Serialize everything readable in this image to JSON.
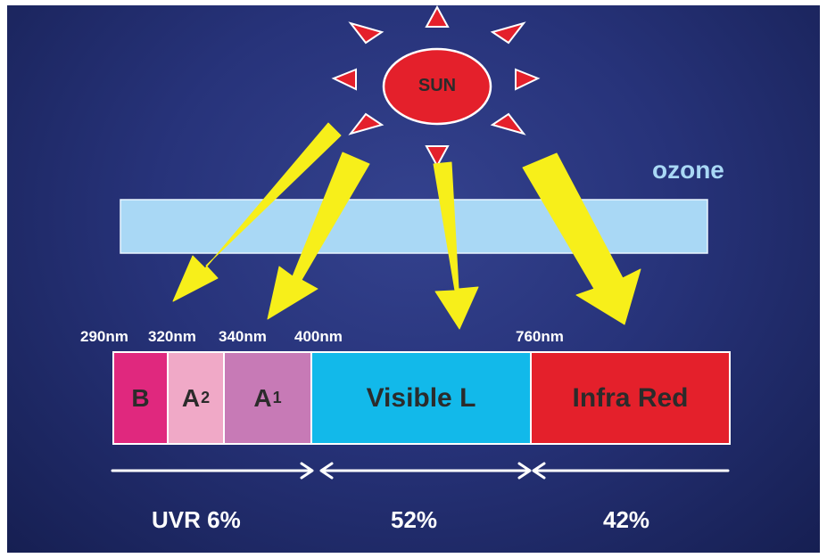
{
  "sun": {
    "label": "SUN"
  },
  "ozone": {
    "label": "ozone"
  },
  "wavelengths": [
    "290nm",
    "320nm",
    "340nm",
    "400nm",
    "760nm"
  ],
  "spectrum": [
    {
      "label": "B",
      "sub": "",
      "color": "#e0287e"
    },
    {
      "label": "A",
      "sub": "2",
      "color": "#f0a9c7"
    },
    {
      "label": "A",
      "sub": "1",
      "color": "#c77ab6"
    },
    {
      "label": "Visible L",
      "sub": "",
      "color": "#12b9ea"
    },
    {
      "label": "Infra Red",
      "sub": "",
      "color": "#e4202b"
    }
  ],
  "shares": [
    "UVR 6%",
    "52%",
    "42%"
  ],
  "colors": {
    "arrow": "#f7ef1a",
    "sun": "#e4202b",
    "ozone": "#a9d8f5"
  }
}
